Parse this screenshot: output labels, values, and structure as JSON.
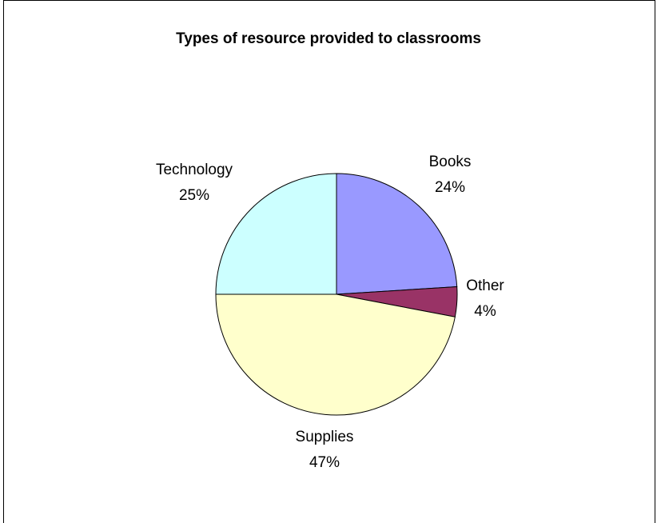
{
  "chart_data": {
    "type": "pie",
    "title": "Types of resource provided to classrooms",
    "slices": [
      {
        "name": "Books",
        "value": 24,
        "label": "24%",
        "color": "#9999ff"
      },
      {
        "name": "Other",
        "value": 4,
        "label": "4%",
        "color": "#993366"
      },
      {
        "name": "Supplies",
        "value": 47,
        "label": "47%",
        "color": "#ffffcc"
      },
      {
        "name": "Technology",
        "value": 25,
        "label": "25%",
        "color": "#ccffff"
      }
    ],
    "start_angle_deg": 0,
    "direction": "clockwise",
    "legend": "none"
  }
}
